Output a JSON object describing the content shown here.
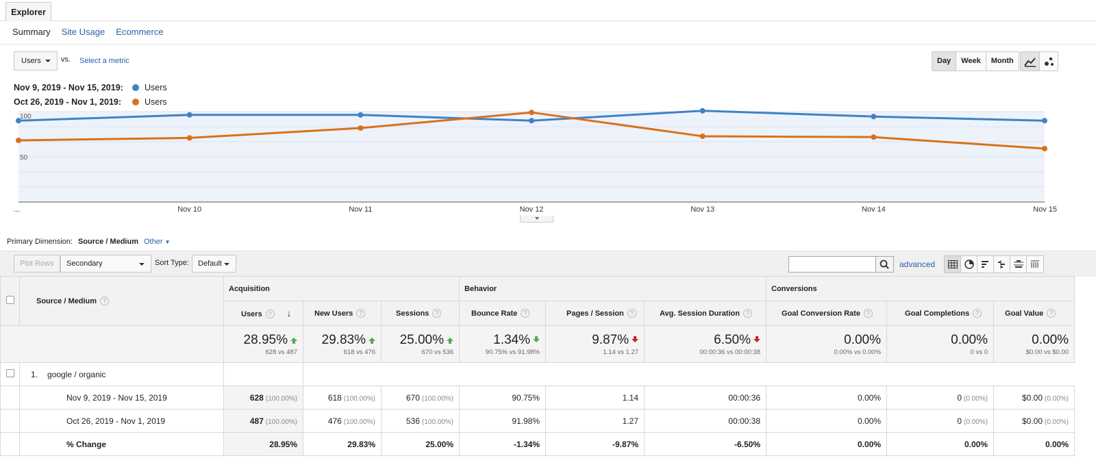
{
  "tabs": {
    "explorer": "Explorer"
  },
  "subtabs": [
    "Summary",
    "Site Usage",
    "Ecommerce"
  ],
  "metric": {
    "selected": "Users",
    "vs": "vs.",
    "select_metric": "Select a metric"
  },
  "period_buttons": [
    "Day",
    "Week",
    "Month"
  ],
  "period_selected": "Day",
  "legend": [
    {
      "range": "Nov 9, 2019 - Nov 15, 2019:",
      "name": "Users",
      "color": "#3f82c4"
    },
    {
      "range": "Oct 26, 2019 - Nov 1, 2019:",
      "name": "Users",
      "color": "#d9711b"
    }
  ],
  "chart_data": {
    "type": "line",
    "x": [
      "...",
      "Nov 10",
      "Nov 11",
      "Nov 12",
      "Nov 13",
      "Nov 14",
      "Nov 15"
    ],
    "y_ticks": [
      100,
      50
    ],
    "ylim": [
      0,
      110
    ],
    "series": [
      {
        "name": "Users",
        "color": "#3f82c4",
        "values": [
          99,
          106,
          106,
          99,
          111,
          104,
          99
        ]
      },
      {
        "name": "Users",
        "color": "#d9711b",
        "values": [
          75,
          78,
          90,
          109,
          80,
          79,
          65
        ]
      }
    ]
  },
  "primary_dimension": {
    "label": "Primary Dimension:",
    "current": "Source / Medium",
    "other": "Other"
  },
  "toolbar": {
    "plot_rows": "Plot Rows",
    "secondary_dimension": "Secondary dimension",
    "sort_type_label": "Sort Type:",
    "sort_type": "Default",
    "advanced": "advanced"
  },
  "table": {
    "dimension_header": "Source / Medium",
    "groups": [
      "Acquisition",
      "Behavior",
      "Conversions"
    ],
    "columns": [
      "Users",
      "New Users",
      "Sessions",
      "Bounce Rate",
      "Pages / Session",
      "Avg. Session Duration",
      "Goal Conversion Rate",
      "Goal Completions",
      "Goal Value"
    ],
    "summary": [
      {
        "big": "28.95%",
        "small": "628 vs 487",
        "trend": "up"
      },
      {
        "big": "29.83%",
        "small": "618 vs 476",
        "trend": "up"
      },
      {
        "big": "25.00%",
        "small": "670 vs 536",
        "trend": "up"
      },
      {
        "big": "1.34%",
        "small": "90.75% vs 91.98%",
        "trend": "down-good"
      },
      {
        "big": "9.87%",
        "small": "1.14 vs 1.27",
        "trend": "down-bad"
      },
      {
        "big": "6.50%",
        "small": "00:00:36 vs 00:00:38",
        "trend": "down-bad"
      },
      {
        "big": "0.00%",
        "small": "0.00% vs 0.00%",
        "trend": ""
      },
      {
        "big": "0.00%",
        "small": "0 vs 0",
        "trend": ""
      },
      {
        "big": "0.00%",
        "small": "$0.00 vs $0.00",
        "trend": ""
      }
    ],
    "row_index": "1.",
    "row_label": "google / organic",
    "rows": [
      {
        "label": "Nov 9, 2019 - Nov 15, 2019",
        "cells": [
          [
            "628",
            "(100.00%)"
          ],
          [
            "618",
            "(100.00%)"
          ],
          [
            "670",
            "(100.00%)"
          ],
          [
            "90.75%",
            ""
          ],
          [
            "1.14",
            ""
          ],
          [
            "00:00:36",
            ""
          ],
          [
            "0.00%",
            ""
          ],
          [
            "0",
            "(0.00%)"
          ],
          [
            "$0.00",
            "(0.00%)"
          ]
        ]
      },
      {
        "label": "Oct 26, 2019 - Nov 1, 2019",
        "cells": [
          [
            "487",
            "(100.00%)"
          ],
          [
            "476",
            "(100.00%)"
          ],
          [
            "536",
            "(100.00%)"
          ],
          [
            "91.98%",
            ""
          ],
          [
            "1.27",
            ""
          ],
          [
            "00:00:38",
            ""
          ],
          [
            "0.00%",
            ""
          ],
          [
            "0",
            "(0.00%)"
          ],
          [
            "$0.00",
            "(0.00%)"
          ]
        ]
      },
      {
        "label": "% Change",
        "cells": [
          [
            "28.95%",
            ""
          ],
          [
            "29.83%",
            ""
          ],
          [
            "25.00%",
            ""
          ],
          [
            "-1.34%",
            ""
          ],
          [
            "-9.87%",
            ""
          ],
          [
            "-6.50%",
            ""
          ],
          [
            "0.00%",
            ""
          ],
          [
            "0.00%",
            ""
          ],
          [
            "0.00%",
            ""
          ]
        ]
      }
    ]
  }
}
